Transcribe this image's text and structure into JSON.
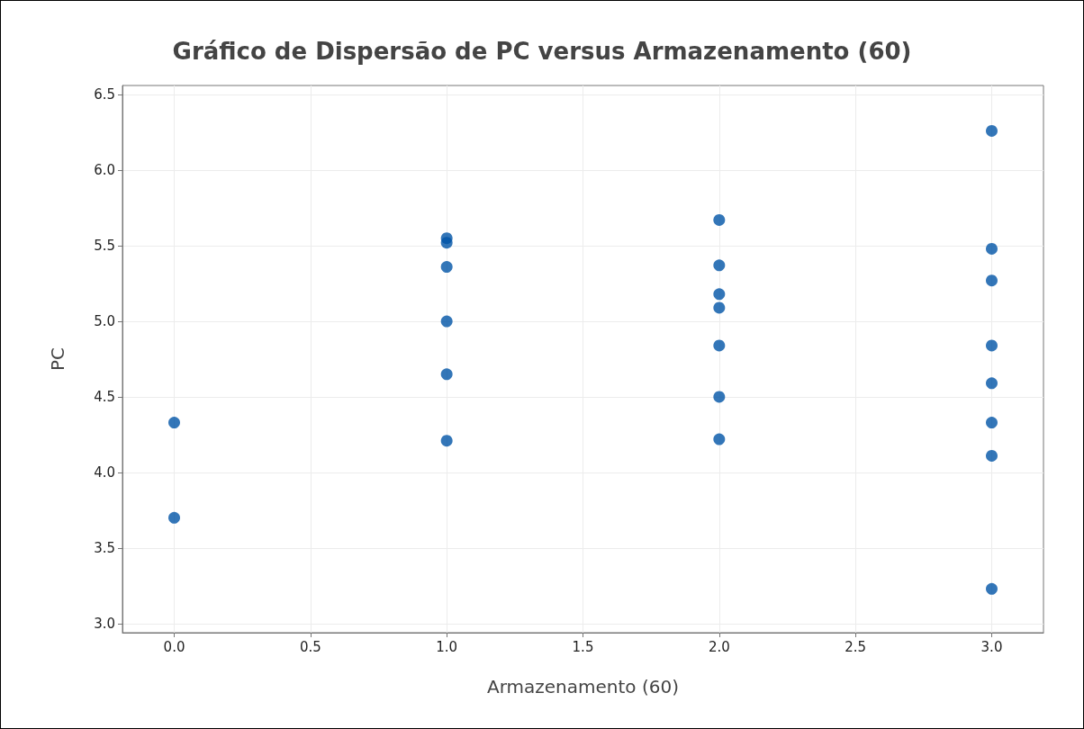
{
  "chart_data": {
    "type": "scatter",
    "title": "Gráfico de Dispersão de PC versus Armazenamento (60)",
    "xlabel": "Armazenamento (60)",
    "ylabel": "PC",
    "x": [
      0,
      0,
      1,
      1,
      1,
      1,
      1,
      1,
      2,
      2,
      2,
      2,
      2,
      2,
      2,
      3,
      3,
      3,
      3,
      3,
      3,
      3,
      3
    ],
    "series": [
      {
        "color": "#0054a6",
        "values": [
          4.33,
          3.7,
          5.55,
          5.52,
          5.36,
          5.0,
          4.65,
          4.21,
          5.67,
          5.37,
          5.18,
          5.09,
          4.84,
          4.5,
          4.22,
          6.26,
          5.48,
          5.27,
          4.84,
          4.59,
          4.33,
          4.11,
          3.23
        ]
      }
    ],
    "xlim": [
      -0.19,
      3.19
    ],
    "xticks": [
      {
        "value": 0,
        "label": "0.0"
      },
      {
        "value": 0.5,
        "label": "0.5"
      },
      {
        "value": 1,
        "label": "1.0"
      },
      {
        "value": 1.5,
        "label": "1.5"
      },
      {
        "value": 2,
        "label": "2.0"
      },
      {
        "value": 2.5,
        "label": "2.5"
      },
      {
        "value": 3,
        "label": "3.0"
      }
    ],
    "ylim": [
      2.94,
      6.56
    ],
    "yticks": [
      {
        "value": 3,
        "label": "3.0"
      },
      {
        "value": 3.5,
        "label": "3.5"
      },
      {
        "value": 4,
        "label": "4.0"
      },
      {
        "value": 4.5,
        "label": "4.5"
      },
      {
        "value": 5,
        "label": "5.0"
      },
      {
        "value": 5.5,
        "label": "5.5"
      },
      {
        "value": 6,
        "label": "6.0"
      },
      {
        "value": 6.5,
        "label": "6.5"
      }
    ],
    "grid": true,
    "marker": "circle"
  }
}
